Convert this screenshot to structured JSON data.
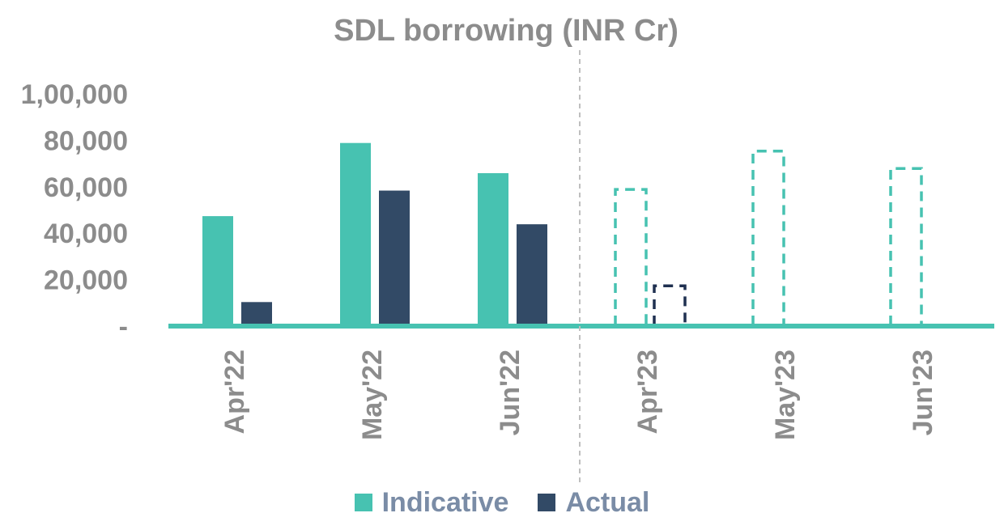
{
  "chart_data": {
    "type": "bar",
    "title": "SDL borrowing (INR Cr)",
    "xlabel": "",
    "ylabel": "",
    "categories": [
      "Apr'22",
      "May'22",
      "Jun'22",
      "Apr'23",
      "May'23",
      "Jun'23"
    ],
    "series": [
      {
        "name": "Indicative",
        "color": "#47c2b1",
        "values": [
          47000,
          78500,
          65500,
          58500,
          75000,
          67500
        ],
        "projected": [
          false,
          false,
          false,
          true,
          true,
          true
        ]
      },
      {
        "name": "Actual",
        "color": "#324a66",
        "values": [
          10000,
          58000,
          43500,
          17000,
          null,
          null
        ],
        "projected": [
          false,
          false,
          false,
          true,
          false,
          false
        ]
      }
    ],
    "ylim": [
      0,
      100000
    ],
    "yticks": [
      0,
      20000,
      40000,
      60000,
      80000,
      100000
    ],
    "ytick_labels": [
      "-",
      "20,000",
      "40,000",
      "60,000",
      "80,000",
      "1,00,000"
    ],
    "grid": false,
    "legend_position": "bottom",
    "divider_after_category": "Jun'22",
    "axis_color": "#47c2b1",
    "projected_actual_color": "#1f3050"
  }
}
